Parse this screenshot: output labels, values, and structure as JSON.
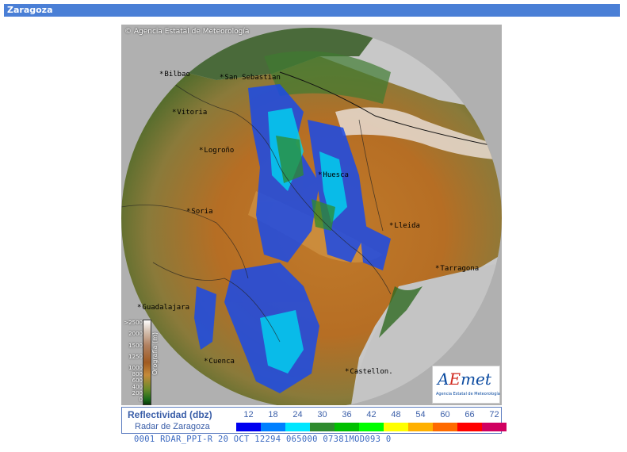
{
  "window": {
    "title": "Zaragoza"
  },
  "map": {
    "copyright": "© Agencia Estatal de Meteorología",
    "cities": [
      {
        "name": "Bilbao"
      },
      {
        "name": "San Sebastian"
      },
      {
        "name": "Vitoria"
      },
      {
        "name": "Logroño"
      },
      {
        "name": "Huesca"
      },
      {
        "name": "Soria"
      },
      {
        "name": "Lleida"
      },
      {
        "name": "Tarragona"
      },
      {
        "name": "Guadalajara"
      },
      {
        "name": "Cuenca"
      },
      {
        "name": "Castellon."
      }
    ],
    "orography_legend": {
      "title": "Orografía (m)",
      "levels": [
        ">2500",
        "2000",
        "1500",
        "1250",
        "1000",
        "800",
        "600",
        "400",
        "200",
        "0"
      ]
    },
    "logo": {
      "text_a": "A",
      "text_e": "E",
      "text_met": "met",
      "subtitle": "Agencia Estatal de Meteorología"
    }
  },
  "legend": {
    "title": "Reflectividad (dbz)",
    "subtitle": "Radar de Zaragoza",
    "scale": [
      {
        "label": "12",
        "color": "#0000f0"
      },
      {
        "label": "18",
        "color": "#0080ff"
      },
      {
        "label": "24",
        "color": "#00e6ff"
      },
      {
        "label": "30",
        "color": "#2e8b2e"
      },
      {
        "label": "36",
        "color": "#00c000"
      },
      {
        "label": "42",
        "color": "#00ff00"
      },
      {
        "label": "48",
        "color": "#ffff00"
      },
      {
        "label": "54",
        "color": "#ffb000"
      },
      {
        "label": "60",
        "color": "#ff6a00"
      },
      {
        "label": "66",
        "color": "#ff0000"
      },
      {
        "label": "72",
        "color": "#d00060"
      }
    ]
  },
  "status_line": "0001 RDAR_PPI-R  20 OCT 12294 065000 07381MOD093 0"
}
